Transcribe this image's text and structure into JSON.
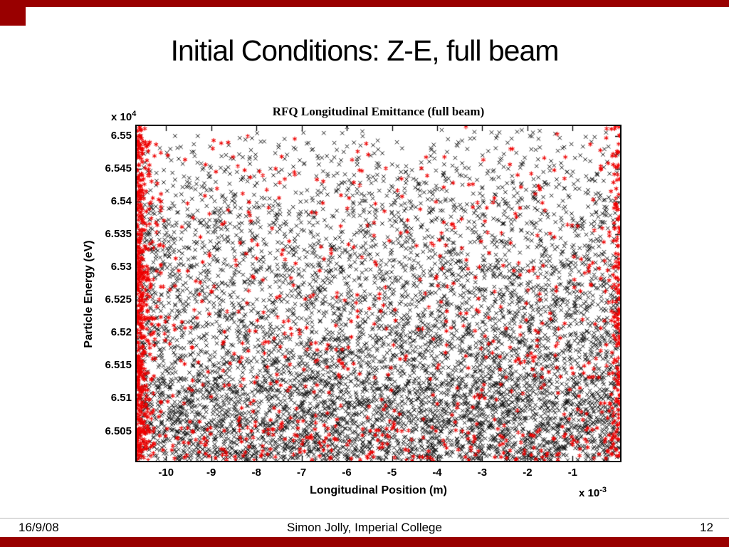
{
  "slide": {
    "title": "Initial Conditions: Z-E, full beam"
  },
  "footer": {
    "date": "16/9/08",
    "credit": "Simon Jolly, Imperial College",
    "page": "12"
  },
  "theme": {
    "accent": "#990000",
    "marker_black": "#151515",
    "marker_red": "#ee0000"
  },
  "chart_data": {
    "type": "scatter",
    "title": "RFQ Longitudinal Emittance (full beam)",
    "xlabel": "Longitudinal Position (m)",
    "ylabel": "Particle Energy (eV)",
    "x_multiplier": {
      "base": "x 10",
      "exp": "-3"
    },
    "y_multiplier": {
      "base": "x 10",
      "exp": "4"
    },
    "x_unit_scale": "1e-3",
    "y_unit_scale": "1e4",
    "xlim": [
      -10.65,
      0.05
    ],
    "ylim": [
      6.5005,
      6.5515
    ],
    "xticks": [
      -10,
      -9,
      -8,
      -7,
      -6,
      -5,
      -4,
      -3,
      -2,
      -1
    ],
    "yticks": [
      6.505,
      6.51,
      6.515,
      6.52,
      6.525,
      6.53,
      6.535,
      6.54,
      6.545,
      6.55
    ],
    "grid": false,
    "legend": null,
    "description": "Dense random scatter of ~8500 particles: black x markers fill the axes (denser toward bottom, fading near top above 6.545e4 eV); red asterisk markers form a dense vertical band at the far left edge, a light band at the right edge, a strip along the bottom, and are sprinkled throughout.",
    "series": [
      {
        "name": "main-beam-black-cross",
        "marker": "x",
        "color": "#151515",
        "size": 2.7,
        "line_width": 1,
        "count": 7000,
        "seed": 20080916,
        "components": [
          {
            "w": 0.88,
            "x": {
              "type": "uniform",
              "min": 0.002,
              "max": 0.999
            },
            "y": {
              "type": "power_bottom",
              "p": 0.6
            }
          },
          {
            "w": 0.12,
            "x": {
              "type": "uniform",
              "min": 0.002,
              "max": 0.999
            },
            "y": {
              "type": "uniform",
              "min": 0.75,
              "max": 1.0
            }
          }
        ]
      },
      {
        "name": "halo-red-asterisk",
        "marker": "asterisk",
        "color": "#ee0000",
        "size": 3.2,
        "line_width": 1.1,
        "count": 1500,
        "seed": 12,
        "components": [
          {
            "w": 0.34,
            "x": {
              "type": "exp_left",
              "scale": 0.012,
              "max": 0.05
            },
            "y": {
              "type": "power_bottom",
              "p": 0.8
            }
          },
          {
            "w": 0.1,
            "x": {
              "type": "exp_right",
              "scale": 0.01,
              "max": 0.04
            },
            "y": {
              "type": "power_bottom",
              "p": 0.85
            }
          },
          {
            "w": 0.44,
            "x": {
              "type": "uniform",
              "min": 0.005,
              "max": 0.999
            },
            "y": {
              "type": "power_bottom",
              "p": 0.72
            }
          },
          {
            "w": 0.12,
            "x": {
              "type": "uniform",
              "min": 0.0,
              "max": 1.0
            },
            "y": {
              "type": "uniform",
              "min": 0.9,
              "max": 1.0
            }
          }
        ]
      }
    ]
  }
}
